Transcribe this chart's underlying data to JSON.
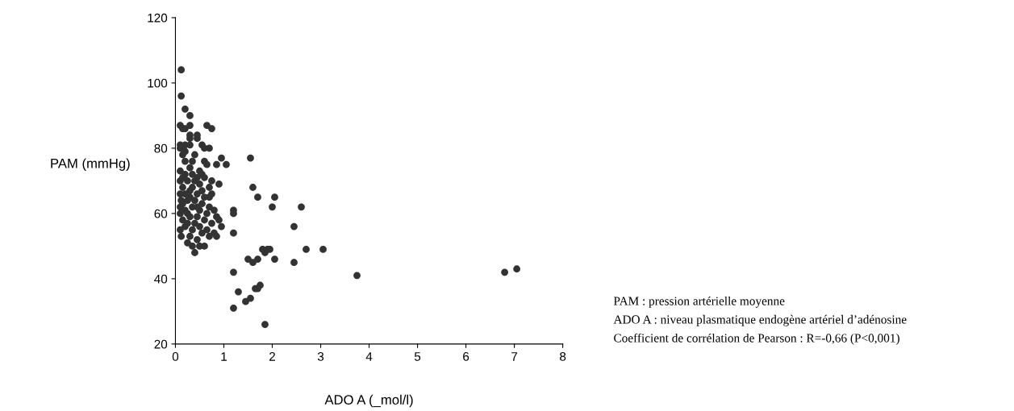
{
  "chart_data": {
    "type": "scatter",
    "xlabel": "ADO A (_mol/l)",
    "ylabel": "PAM (mmHg)",
    "xlim": [
      0,
      8
    ],
    "ylim": [
      20,
      120
    ],
    "xticks": [
      0,
      1,
      2,
      3,
      4,
      5,
      6,
      7,
      8
    ],
    "yticks": [
      20,
      40,
      60,
      80,
      100,
      120
    ],
    "grid": false,
    "marker": "circle",
    "annotations": [
      "PAM : pression artérielle moyenne",
      "ADO A : niveau plasmatique endogène artériel d’adénosine",
      "Coefficient de corrélation de Pearson : R=-0,66 (P<0,001)"
    ],
    "series": [
      {
        "color": "#333333",
        "x": [
          1.55,
          1.6,
          1.7,
          2.05,
          2.0,
          2.6,
          1.2,
          1.2,
          1.2,
          2.45,
          1.8,
          1.9,
          1.95,
          2.7,
          3.05,
          1.85,
          1.5,
          1.6,
          1.7,
          2.05,
          2.45,
          1.2,
          3.75,
          6.8,
          7.05,
          1.75,
          1.65,
          1.7,
          1.3,
          1.55,
          1.45,
          1.2,
          1.85,
          0.12,
          0.12,
          0.2,
          0.3,
          0.1,
          0.15,
          0.3,
          0.2,
          0.65,
          0.75,
          0.45,
          0.45,
          0.3,
          0.3,
          0.1,
          0.2,
          0.3,
          0.55,
          0.6,
          0.1,
          0.15,
          0.4,
          0.7,
          0.95,
          0.85,
          0.65,
          0.2,
          0.35,
          1.05,
          0.1,
          0.2,
          0.3,
          0.5,
          0.55,
          0.25,
          0.45,
          0.6,
          0.75,
          0.1,
          0.15,
          0.35,
          0.5,
          0.7,
          0.9,
          0.1,
          0.2,
          0.3,
          0.45,
          0.6,
          0.75,
          0.12,
          0.25,
          0.4,
          0.55,
          0.7,
          0.1,
          0.2,
          0.35,
          0.5,
          0.65,
          0.85,
          0.1,
          0.3,
          0.45,
          0.6,
          0.15,
          0.4,
          0.75,
          0.9,
          0.2,
          0.5,
          0.65,
          0.95,
          0.1,
          0.35,
          0.55,
          0.8,
          0.12,
          0.3,
          0.45,
          0.7,
          0.25,
          0.5,
          0.6,
          0.35,
          0.4,
          0.85,
          0.25,
          0.15,
          0.4,
          0.2,
          0.8,
          0.7,
          0.55,
          0.35,
          0.6,
          0.25,
          0.45,
          0.3,
          0.15
        ],
        "values": [
          77,
          68,
          65,
          65,
          62,
          62,
          61,
          60,
          54,
          56,
          49,
          49,
          49,
          49,
          49,
          48,
          46,
          45,
          46,
          46,
          45,
          42,
          41,
          42,
          43,
          38,
          37,
          37,
          36,
          34,
          33,
          31,
          26,
          104,
          96,
          92,
          90,
          87,
          86,
          87,
          86,
          87,
          86,
          84,
          83,
          84,
          83,
          81,
          81,
          81,
          81,
          80,
          80,
          78,
          78,
          80,
          77,
          75,
          75,
          76,
          76,
          75,
          73,
          72,
          74,
          73,
          72,
          70,
          71,
          71,
          70,
          70,
          68,
          68,
          69,
          68,
          69,
          66,
          66,
          67,
          66,
          65,
          66,
          64,
          64,
          64,
          63,
          62,
          62,
          61,
          62,
          61,
          60,
          59,
          60,
          59,
          59,
          58,
          58,
          57,
          57,
          58,
          56,
          56,
          55,
          56,
          55,
          55,
          54,
          54,
          53,
          53,
          52,
          53,
          51,
          50,
          50,
          50,
          48,
          53,
          60,
          63,
          70,
          79,
          61,
          65,
          67,
          72,
          76,
          57,
          62,
          65,
          71
        ]
      }
    ]
  }
}
